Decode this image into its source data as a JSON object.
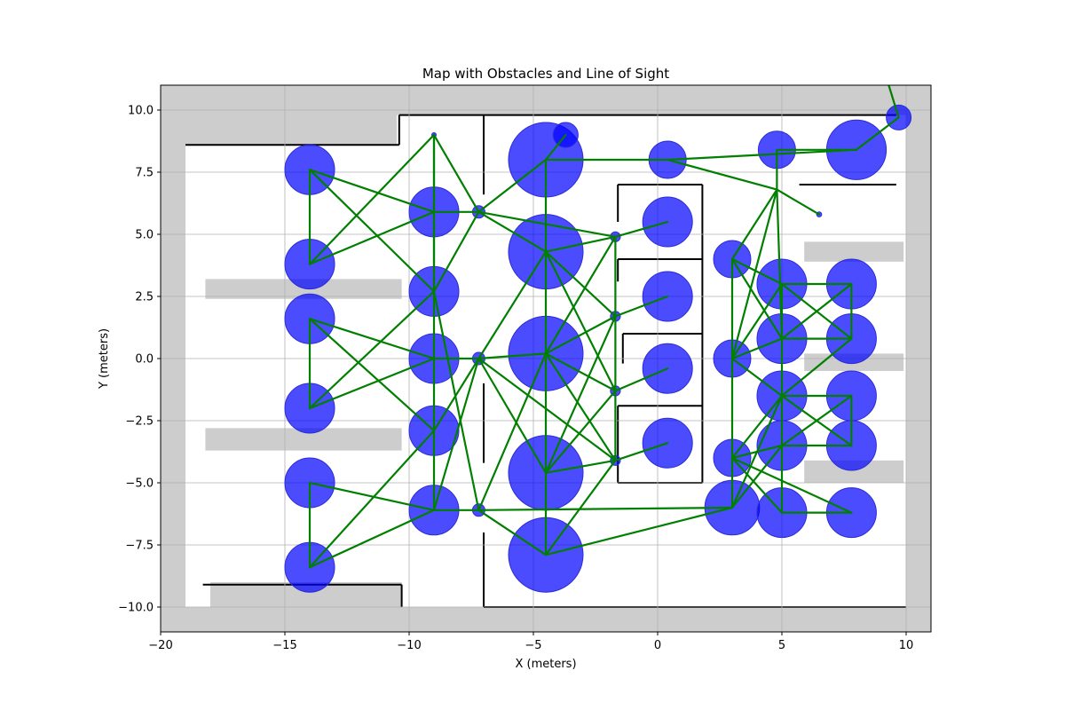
{
  "chart_data": {
    "type": "scatter",
    "title": "Map with Obstacles and Line of Sight",
    "xlabel": "X (meters)",
    "ylabel": "Y (meters)",
    "xlim": [
      -20,
      11
    ],
    "ylim": [
      -11,
      11
    ],
    "xticks": [
      -20,
      -15,
      -10,
      -5,
      0,
      5,
      10
    ],
    "yticks": [
      -10.0,
      -7.5,
      -5.0,
      -2.5,
      0.0,
      2.5,
      5.0,
      7.5,
      10.0
    ],
    "xtick_labels": [
      "−20",
      "−15",
      "−10",
      "−5",
      "0",
      "5",
      "10"
    ],
    "ytick_labels": [
      "−10.0",
      "−7.5",
      "−5.0",
      "−2.5",
      "0.0",
      "2.5",
      "5.0",
      "7.5",
      "10.0"
    ],
    "grid": true,
    "colors": {
      "obstacle_fill": "#0000ff",
      "obstacle_edge": "#2b2bd8",
      "sight_line": "#007f00",
      "occupancy_gray": "#cdcdcd",
      "wall": "#000000"
    },
    "occupancy_gray_regions": [
      {
        "x": [
          -20,
          11
        ],
        "y": [
          9.8,
          11
        ]
      },
      {
        "x": [
          -20,
          -19.0
        ],
        "y": [
          -11,
          11
        ]
      },
      {
        "x": [
          10.0,
          11
        ],
        "y": [
          -11,
          11
        ]
      },
      {
        "x": [
          -20,
          11
        ],
        "y": [
          -11,
          -10.0
        ]
      },
      {
        "x": [
          -20,
          -10.5
        ],
        "y": [
          8.6,
          11
        ]
      },
      {
        "x": [
          -18.2,
          -10.3
        ],
        "y": [
          2.4,
          3.2
        ]
      },
      {
        "x": [
          -18.2,
          -10.3
        ],
        "y": [
          -3.7,
          -2.8
        ]
      },
      {
        "x": [
          -18.0,
          -10.3
        ],
        "y": [
          -10.0,
          -9.0
        ]
      },
      {
        "x": [
          5.9,
          9.9
        ],
        "y": [
          3.9,
          4.7
        ]
      },
      {
        "x": [
          5.9,
          9.9
        ],
        "y": [
          -0.5,
          0.2
        ]
      },
      {
        "x": [
          5.9,
          9.9
        ],
        "y": [
          -5.0,
          -4.1
        ]
      }
    ],
    "walls": [
      {
        "x": [
          -19.0,
          -10.4
        ],
        "y": [
          8.6,
          8.6
        ]
      },
      {
        "x": [
          -10.4,
          -10.4
        ],
        "y": [
          8.6,
          9.8
        ]
      },
      {
        "x": [
          -10.4,
          9.6
        ],
        "y": [
          9.8,
          9.8
        ]
      },
      {
        "x": [
          -7.0,
          -7.0
        ],
        "y": [
          9.8,
          6.6
        ]
      },
      {
        "x": [
          -7.0,
          -7.0
        ],
        "y": [
          -1.0,
          -4.2
        ]
      },
      {
        "x": [
          -7.0,
          -7.0
        ],
        "y": [
          -7.0,
          -10.0
        ]
      },
      {
        "x": [
          -1.6,
          1.8
        ],
        "y": [
          7.0,
          7.0
        ]
      },
      {
        "x": [
          -1.6,
          -1.6
        ],
        "y": [
          7.0,
          5.5
        ]
      },
      {
        "x": [
          -1.6,
          1.8
        ],
        "y": [
          4.0,
          4.0
        ]
      },
      {
        "x": [
          -1.6,
          -1.6
        ],
        "y": [
          4.0,
          3.1
        ]
      },
      {
        "x": [
          -1.4,
          1.8
        ],
        "y": [
          1.0,
          1.0
        ]
      },
      {
        "x": [
          -1.4,
          -1.4
        ],
        "y": [
          1.0,
          -0.2
        ]
      },
      {
        "x": [
          -1.6,
          1.8
        ],
        "y": [
          -1.9,
          -1.9
        ]
      },
      {
        "x": [
          -1.6,
          -1.6
        ],
        "y": [
          -1.9,
          -5.0
        ]
      },
      {
        "x": [
          1.8,
          1.8
        ],
        "y": [
          7.0,
          -5.0
        ]
      },
      {
        "x": [
          -1.6,
          1.8
        ],
        "y": [
          -5.0,
          -5.0
        ]
      },
      {
        "x": [
          5.7,
          9.6
        ],
        "y": [
          7.0,
          7.0
        ]
      },
      {
        "x": [
          -18.3,
          -10.3
        ],
        "y": [
          -9.1,
          -9.1
        ]
      },
      {
        "x": [
          -10.3,
          -10.3
        ],
        "y": [
          -9.1,
          -10.0
        ]
      },
      {
        "x": [
          -7.0,
          10.0
        ],
        "y": [
          -10.0,
          -10.0
        ]
      }
    ],
    "obstacles": [
      {
        "x": -14.0,
        "y": 7.6,
        "r": 1.0
      },
      {
        "x": -14.0,
        "y": 3.8,
        "r": 1.0
      },
      {
        "x": -14.0,
        "y": 1.6,
        "r": 1.0
      },
      {
        "x": -14.0,
        "y": -2.0,
        "r": 1.0
      },
      {
        "x": -14.0,
        "y": -5.0,
        "r": 1.0
      },
      {
        "x": -14.0,
        "y": -8.4,
        "r": 1.0
      },
      {
        "x": -9.0,
        "y": 5.9,
        "r": 1.0
      },
      {
        "x": -9.0,
        "y": 2.7,
        "r": 1.0
      },
      {
        "x": -9.0,
        "y": 0.0,
        "r": 1.0
      },
      {
        "x": -9.0,
        "y": -2.9,
        "r": 1.0
      },
      {
        "x": -9.0,
        "y": -6.1,
        "r": 1.0
      },
      {
        "x": -4.5,
        "y": 8.0,
        "r": 1.5
      },
      {
        "x": -4.5,
        "y": 4.3,
        "r": 1.5
      },
      {
        "x": -4.5,
        "y": 0.2,
        "r": 1.5
      },
      {
        "x": -4.5,
        "y": -4.6,
        "r": 1.5
      },
      {
        "x": -4.5,
        "y": -7.9,
        "r": 1.5
      },
      {
        "x": -3.7,
        "y": 9.0,
        "r": 0.5
      },
      {
        "x": 0.4,
        "y": 8.0,
        "r": 0.75
      },
      {
        "x": 0.4,
        "y": 5.5,
        "r": 1.0
      },
      {
        "x": 0.4,
        "y": 2.5,
        "r": 1.0
      },
      {
        "x": 0.4,
        "y": -0.4,
        "r": 1.0
      },
      {
        "x": 0.4,
        "y": -3.4,
        "r": 1.0
      },
      {
        "x": 3.0,
        "y": 4.0,
        "r": 0.75
      },
      {
        "x": 3.0,
        "y": 0.0,
        "r": 0.75
      },
      {
        "x": 3.0,
        "y": -4.0,
        "r": 0.75
      },
      {
        "x": 3.0,
        "y": -6.0,
        "r": 1.1
      },
      {
        "x": 4.8,
        "y": 8.4,
        "r": 0.75
      },
      {
        "x": 5.0,
        "y": 3.0,
        "r": 1.0
      },
      {
        "x": 5.0,
        "y": 0.8,
        "r": 1.0
      },
      {
        "x": 5.0,
        "y": -1.5,
        "r": 1.0
      },
      {
        "x": 5.0,
        "y": -3.5,
        "r": 1.0
      },
      {
        "x": 5.0,
        "y": -6.2,
        "r": 1.0
      },
      {
        "x": 8.0,
        "y": 8.4,
        "r": 1.2
      },
      {
        "x": 7.8,
        "y": 3.0,
        "r": 1.0
      },
      {
        "x": 7.8,
        "y": 0.8,
        "r": 1.0
      },
      {
        "x": 7.8,
        "y": -1.5,
        "r": 1.0
      },
      {
        "x": 7.8,
        "y": -3.5,
        "r": 1.0
      },
      {
        "x": 7.8,
        "y": -6.2,
        "r": 1.0
      },
      {
        "x": 9.7,
        "y": 9.7,
        "r": 0.5
      }
    ],
    "nodes": [
      {
        "x": -7.2,
        "y": 5.9,
        "r": 0.25
      },
      {
        "x": -7.2,
        "y": 0.0,
        "r": 0.25
      },
      {
        "x": -7.2,
        "y": -6.1,
        "r": 0.25
      },
      {
        "x": -1.7,
        "y": 4.9,
        "r": 0.2
      },
      {
        "x": -1.7,
        "y": 1.7,
        "r": 0.2
      },
      {
        "x": -1.7,
        "y": -1.3,
        "r": 0.2
      },
      {
        "x": -1.7,
        "y": -4.1,
        "r": 0.2
      },
      {
        "x": -9.0,
        "y": 9.0,
        "r": 0.08
      },
      {
        "x": 6.5,
        "y": 5.8,
        "r": 0.1
      }
    ],
    "sight_edges": [
      [
        -14.0,
        7.6,
        -14.0,
        3.8
      ],
      [
        -14.0,
        7.6,
        -9.0,
        5.9
      ],
      [
        -14.0,
        7.6,
        -9.0,
        2.7
      ],
      [
        -14.0,
        3.8,
        -9.0,
        9.0
      ],
      [
        -14.0,
        3.8,
        -9.0,
        5.9
      ],
      [
        -14.0,
        1.6,
        -14.0,
        -2.0
      ],
      [
        -14.0,
        1.6,
        -9.0,
        0.0
      ],
      [
        -14.0,
        1.6,
        -9.0,
        -2.9
      ],
      [
        -14.0,
        -2.0,
        -9.0,
        2.7
      ],
      [
        -14.0,
        -2.0,
        -9.0,
        0.0
      ],
      [
        -14.0,
        -5.0,
        -14.0,
        -8.4
      ],
      [
        -14.0,
        -5.0,
        -9.0,
        -6.1
      ],
      [
        -14.0,
        -8.4,
        -9.0,
        -2.9
      ],
      [
        -14.0,
        -8.4,
        -9.0,
        -6.1
      ],
      [
        -9.0,
        9.0,
        -9.0,
        5.9
      ],
      [
        -9.0,
        9.0,
        -7.2,
        5.9
      ],
      [
        -9.0,
        5.9,
        -7.2,
        5.9
      ],
      [
        -9.0,
        5.9,
        -9.0,
        -6.1
      ],
      [
        -9.0,
        2.7,
        -7.2,
        5.9
      ],
      [
        -9.0,
        2.7,
        -7.2,
        -6.1
      ],
      [
        -9.0,
        0.0,
        -7.2,
        0.0
      ],
      [
        -9.0,
        -2.9,
        -7.2,
        0.0
      ],
      [
        -9.0,
        -6.1,
        -7.2,
        -6.1
      ],
      [
        -9.0,
        -6.1,
        -7.2,
        0.0
      ],
      [
        -7.2,
        5.9,
        -4.5,
        8.0
      ],
      [
        -7.2,
        5.9,
        -4.5,
        4.3
      ],
      [
        -7.2,
        0.0,
        -4.5,
        4.3
      ],
      [
        -7.2,
        0.0,
        -4.5,
        0.2
      ],
      [
        -7.2,
        0.0,
        -4.5,
        -4.6
      ],
      [
        -7.2,
        0.0,
        -1.7,
        -4.1
      ],
      [
        -7.2,
        -6.1,
        -4.5,
        0.2
      ],
      [
        -7.2,
        -6.1,
        -4.5,
        -7.9
      ],
      [
        -7.2,
        -6.1,
        3.0,
        -6.0
      ],
      [
        -7.2,
        5.9,
        -1.7,
        4.9
      ],
      [
        -4.5,
        8.0,
        -3.7,
        9.0
      ],
      [
        -4.5,
        8.0,
        -4.5,
        -7.9
      ],
      [
        -4.5,
        8.0,
        0.4,
        8.0
      ],
      [
        -4.5,
        4.3,
        -1.7,
        4.9
      ],
      [
        -4.5,
        4.3,
        -1.7,
        1.7
      ],
      [
        -4.5,
        4.3,
        -1.7,
        -1.3
      ],
      [
        -4.5,
        0.2,
        -1.7,
        4.9
      ],
      [
        -4.5,
        0.2,
        -1.7,
        1.7
      ],
      [
        -4.5,
        0.2,
        -1.7,
        -1.3
      ],
      [
        -4.5,
        0.2,
        -1.7,
        -4.1
      ],
      [
        -4.5,
        -4.6,
        -1.7,
        1.7
      ],
      [
        -4.5,
        -4.6,
        -1.7,
        -1.3
      ],
      [
        -4.5,
        -4.6,
        -1.7,
        -4.1
      ],
      [
        -4.5,
        -7.9,
        -1.7,
        -4.1
      ],
      [
        -4.5,
        -7.9,
        3.0,
        -6.0
      ],
      [
        -1.7,
        4.9,
        0.4,
        5.5
      ],
      [
        -1.7,
        1.7,
        0.4,
        2.5
      ],
      [
        -1.7,
        -1.3,
        0.4,
        -0.4
      ],
      [
        -1.7,
        -4.1,
        0.4,
        -3.4
      ],
      [
        -1.7,
        4.9,
        -1.7,
        -4.1
      ],
      [
        0.4,
        8.0,
        4.8,
        6.8
      ],
      [
        0.4,
        8.0,
        8.0,
        8.4
      ],
      [
        4.8,
        8.4,
        4.8,
        6.8
      ],
      [
        4.8,
        8.4,
        8.0,
        8.4
      ],
      [
        4.8,
        6.8,
        6.5,
        5.8
      ],
      [
        4.8,
        6.8,
        3.0,
        4.0
      ],
      [
        4.8,
        6.8,
        3.0,
        0.0
      ],
      [
        4.8,
        6.8,
        5.0,
        0.8
      ],
      [
        8.0,
        8.4,
        9.7,
        9.7
      ],
      [
        9.7,
        9.7,
        9.3,
        11.0
      ],
      [
        3.0,
        4.0,
        3.0,
        -6.0
      ],
      [
        3.0,
        4.0,
        5.0,
        3.0
      ],
      [
        3.0,
        4.0,
        5.0,
        0.8
      ],
      [
        3.0,
        0.0,
        5.0,
        3.0
      ],
      [
        3.0,
        0.0,
        5.0,
        0.8
      ],
      [
        3.0,
        0.0,
        5.0,
        -1.5
      ],
      [
        3.0,
        -4.0,
        5.0,
        -1.5
      ],
      [
        3.0,
        -4.0,
        5.0,
        -3.5
      ],
      [
        3.0,
        -4.0,
        5.0,
        -6.2
      ],
      [
        3.0,
        -6.0,
        5.0,
        -3.5
      ],
      [
        3.0,
        -6.0,
        5.0,
        -1.5
      ],
      [
        3.0,
        -4.0,
        7.8,
        -6.2
      ],
      [
        5.0,
        3.0,
        7.8,
        3.0
      ],
      [
        5.0,
        3.0,
        7.8,
        0.8
      ],
      [
        5.0,
        0.8,
        7.8,
        3.0
      ],
      [
        5.0,
        0.8,
        7.8,
        0.8
      ],
      [
        5.0,
        -1.5,
        7.8,
        0.8
      ],
      [
        5.0,
        -1.5,
        7.8,
        -1.5
      ],
      [
        5.0,
        -1.5,
        7.8,
        -3.5
      ],
      [
        5.0,
        -3.5,
        7.8,
        -1.5
      ],
      [
        5.0,
        -3.5,
        7.8,
        -3.5
      ],
      [
        5.0,
        -6.2,
        7.8,
        -6.2
      ],
      [
        5.0,
        3.0,
        5.0,
        -6.2
      ],
      [
        7.8,
        3.0,
        7.8,
        0.8
      ],
      [
        7.8,
        -1.5,
        7.8,
        -3.5
      ],
      [
        -9.0,
        9.0,
        -9.0,
        2.7
      ]
    ]
  }
}
